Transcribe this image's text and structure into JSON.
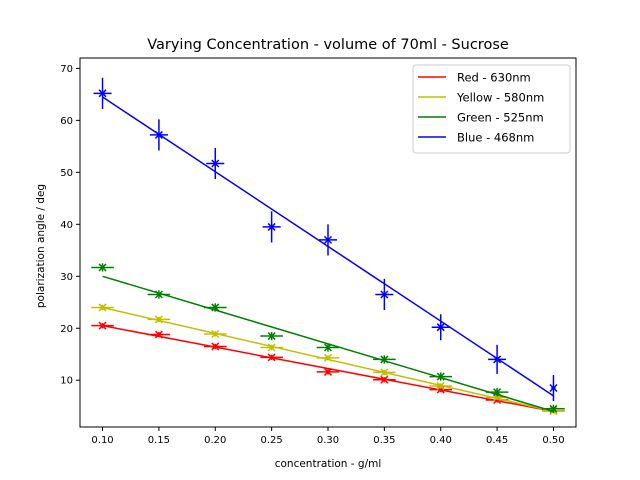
{
  "chart_data": {
    "type": "scatter",
    "title": "Varying Concentration - volume  of 70ml - Sucrose",
    "xlabel": "concentration - g/ml",
    "ylabel": "polarization angle / deg",
    "xlim": [
      0.08,
      0.52
    ],
    "ylim": [
      1,
      72
    ],
    "xticks": [
      0.1,
      0.15,
      0.2,
      0.25,
      0.3,
      0.35,
      0.4,
      0.45,
      0.5
    ],
    "xtick_labels": [
      "0.10",
      "0.15",
      "0.20",
      "0.25",
      "0.30",
      "0.35",
      "0.40",
      "0.45",
      "0.50"
    ],
    "yticks": [
      10,
      20,
      30,
      40,
      50,
      60,
      70
    ],
    "ytick_labels": [
      "10",
      "20",
      "30",
      "40",
      "50",
      "60",
      "70"
    ],
    "grid": false,
    "legend_position": "top-right",
    "x": [
      0.1,
      0.15,
      0.2,
      0.25,
      0.3,
      0.35,
      0.4,
      0.45,
      0.5
    ],
    "series": [
      {
        "name": "Red - 630nm",
        "color": "#ff0000",
        "values": [
          20.5,
          18.8,
          16.5,
          14.4,
          11.6,
          10.1,
          8.2,
          6.2,
          4.1
        ],
        "yerr": [
          0.5,
          0.5,
          0.5,
          0.5,
          0.5,
          0.5,
          0.5,
          0.5,
          0.5
        ],
        "xerr": [
          0.01,
          0.01,
          0.01,
          0.01,
          0.01,
          0.01,
          0.01,
          0.01,
          0.01
        ],
        "fit": [
          20.5,
          4.0
        ]
      },
      {
        "name": "Yellow - 580nm",
        "color": "#bfbf00",
        "values": [
          24.0,
          21.7,
          18.9,
          16.3,
          14.3,
          11.5,
          8.9,
          6.7,
          4.1
        ],
        "yerr": [
          0.5,
          0.5,
          0.5,
          0.5,
          0.5,
          0.5,
          0.5,
          0.5,
          0.5
        ],
        "xerr": [
          0.01,
          0.01,
          0.01,
          0.01,
          0.01,
          0.01,
          0.01,
          0.01,
          0.01
        ],
        "fit": [
          24.0,
          4.0
        ]
      },
      {
        "name": "Green - 525nm",
        "color": "#008000",
        "values": [
          31.7,
          26.5,
          24.0,
          18.5,
          16.3,
          14.0,
          10.7,
          7.7,
          4.5
        ],
        "yerr": [
          0.8,
          0.8,
          0.8,
          0.8,
          0.8,
          0.8,
          0.8,
          0.8,
          0.8
        ],
        "xerr": [
          0.01,
          0.01,
          0.01,
          0.01,
          0.01,
          0.01,
          0.01,
          0.01,
          0.01
        ],
        "fit": [
          30.0,
          4.0
        ]
      },
      {
        "name": "Blue - 468nm",
        "color": "#0000ff",
        "values": [
          65.2,
          57.2,
          51.7,
          39.5,
          37.0,
          26.5,
          20.2,
          14.0,
          8.5
        ],
        "yerr": [
          3.0,
          3.0,
          3.0,
          3.0,
          3.0,
          3.0,
          2.5,
          2.8,
          2.5
        ],
        "xerr": [
          0.008,
          0.008,
          0.008,
          0.008,
          0.008,
          0.008,
          0.008,
          0.008,
          0.002
        ],
        "fit": [
          64.5,
          7.0
        ]
      }
    ]
  }
}
